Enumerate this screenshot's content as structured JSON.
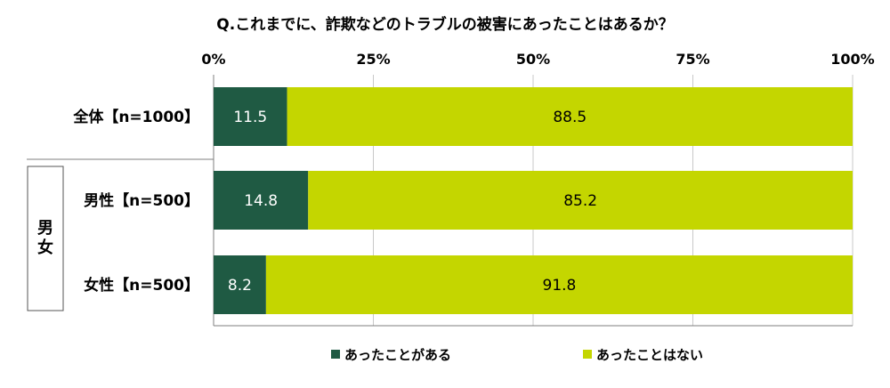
{
  "chart_data": {
    "type": "bar",
    "stacked": true,
    "orientation": "horizontal",
    "title": "Q.これまでに、詐欺などのトラブルの被害にあったことはあるか？",
    "categories": [
      "全体【n=1000】",
      "男性【n=500】",
      "女性【n=500】"
    ],
    "group_label": "男女",
    "series": [
      {
        "name": "あったことがある",
        "values": [
          11.5,
          14.8,
          8.2
        ],
        "color": "#1f5a43",
        "label_color": "#ffffff"
      },
      {
        "name": "あったことはない",
        "values": [
          88.5,
          85.2,
          91.8
        ],
        "color": "#c4d600",
        "label_color": "#000000"
      }
    ],
    "xlim": [
      0,
      100
    ],
    "xticks": [
      "0%",
      "25%",
      "50%",
      "75%",
      "100%"
    ],
    "grid": true,
    "legend_position": "bottom"
  }
}
